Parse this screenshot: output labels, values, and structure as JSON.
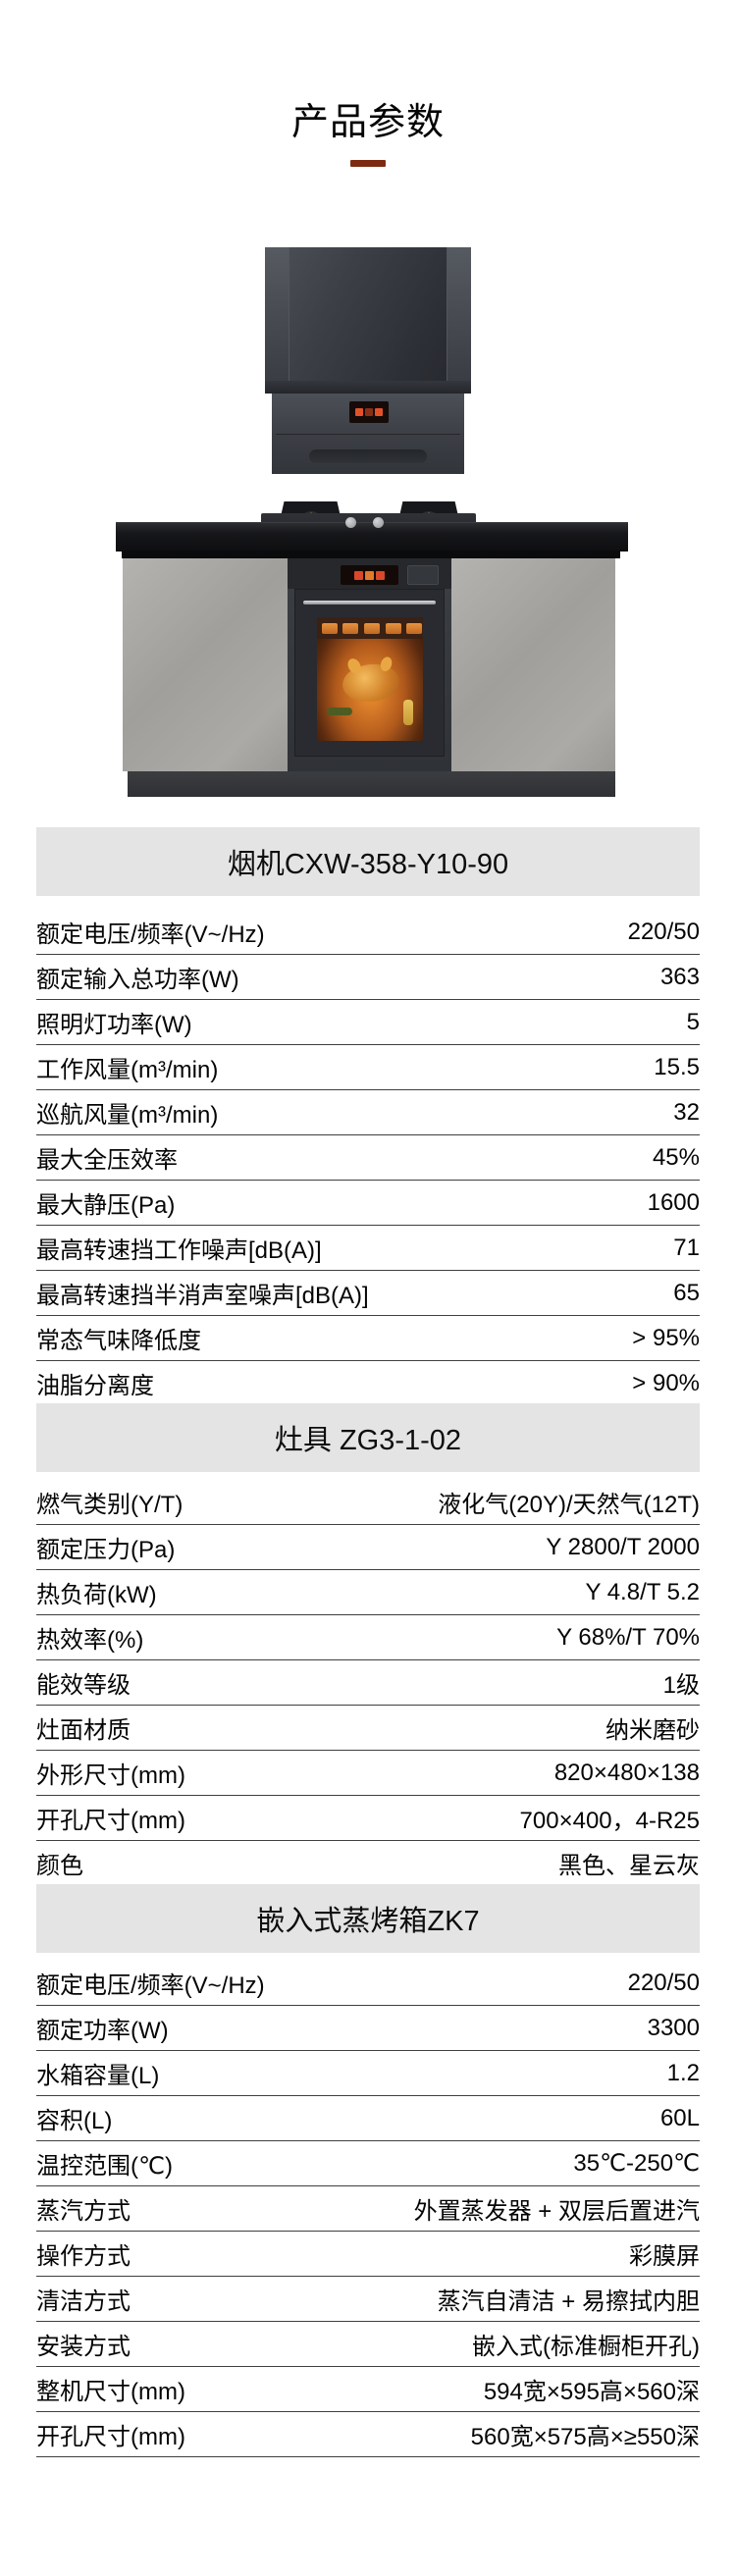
{
  "page": {
    "title": "产品参数"
  },
  "colors": {
    "accent_dash": "#7c2a12",
    "table_header_bg": "#e4e4e4",
    "row_border": "#3f3f3f",
    "text": "#050505"
  },
  "tables": [
    {
      "title": "烟机CXW-358-Y10-90",
      "rows": [
        {
          "label": "额定电压/频率(V~/Hz)",
          "value": "220/50"
        },
        {
          "label": "额定输入总功率(W)",
          "value": "363"
        },
        {
          "label": "照明灯功率(W)",
          "value": "5"
        },
        {
          "label": "工作风量(m³/min)",
          "value": "15.5"
        },
        {
          "label": "巡航风量(m³/min)",
          "value": "32"
        },
        {
          "label": "最大全压效率",
          "value": "45%"
        },
        {
          "label": "最大静压(Pa)",
          "value": "1600"
        },
        {
          "label": "最高转速挡工作噪声[dB(A)]",
          "value": "71"
        },
        {
          "label": "最高转速挡半消声室噪声[dB(A)]",
          "value": "65"
        },
        {
          "label": "常态气味降低度",
          "value": "> 95%"
        },
        {
          "label": "油脂分离度",
          "value": "> 90%"
        }
      ]
    },
    {
      "title": "灶具 ZG3-1-02",
      "rows": [
        {
          "label": "燃气类别(Y/T)",
          "value": "液化气(20Y)/天然气(12T)"
        },
        {
          "label": "额定压力(Pa)",
          "value": "Y 2800/T 2000"
        },
        {
          "label": "热负荷(kW)",
          "value": "Y 4.8/T 5.2"
        },
        {
          "label": "热效率(%)",
          "value": "Y 68%/T 70%"
        },
        {
          "label": "能效等级",
          "value": "1级"
        },
        {
          "label": "灶面材质",
          "value": "纳米磨砂"
        },
        {
          "label": "外形尺寸(mm)",
          "value": "820×480×138"
        },
        {
          "label": "开孔尺寸(mm)",
          "value": "700×400，4-R25"
        },
        {
          "label": "颜色",
          "value": "黑色、星云灰"
        }
      ]
    },
    {
      "title": "嵌入式蒸烤箱ZK7",
      "rows": [
        {
          "label": "额定电压/频率(V~/Hz)",
          "value": "220/50"
        },
        {
          "label": "额定功率(W)",
          "value": "3300"
        },
        {
          "label": "水箱容量(L)",
          "value": "1.2"
        },
        {
          "label": "容积(L)",
          "value": "60L"
        },
        {
          "label": "温控范围(℃)",
          "value": "35℃-250℃"
        },
        {
          "label": "蒸汽方式",
          "value": "外置蒸发器 + 双层后置进汽"
        },
        {
          "label": "操作方式",
          "value": "彩膜屏"
        },
        {
          "label": "清洁方式",
          "value": "蒸汽自清洁 + 易擦拭内胆"
        },
        {
          "label": "安装方式",
          "value": "嵌入式(标准橱柜开孔)"
        },
        {
          "label": "整机尺寸(mm)",
          "value": "594宽×595高×560深"
        },
        {
          "label": "开孔尺寸(mm)",
          "value": "560宽×575高×≥550深"
        }
      ]
    }
  ]
}
